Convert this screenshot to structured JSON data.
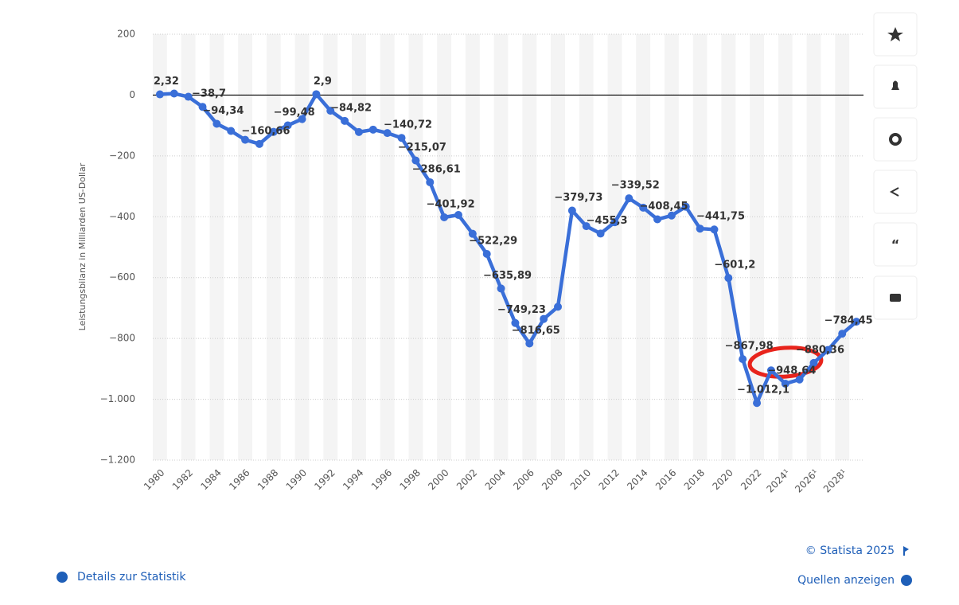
{
  "chart_data": {
    "type": "line",
    "y_label": "Leistungsbilanz in Milliarden US-Dollar",
    "categories": [
      "1980",
      null,
      "1982",
      null,
      "1984",
      null,
      "1986",
      null,
      "1988",
      null,
      "1990",
      null,
      "1992",
      null,
      "1994",
      null,
      "1996",
      null,
      "1998",
      null,
      "2000",
      null,
      "2002",
      null,
      "2004",
      null,
      "2006",
      null,
      "2008",
      null,
      "2010",
      null,
      "2012",
      null,
      "2014",
      null,
      "2016",
      null,
      "2018",
      null,
      "2020",
      null,
      "2022",
      null,
      "2024¹",
      null,
      "2026¹",
      null,
      "2028¹",
      null
    ],
    "values": [
      2.32,
      5,
      -5.5,
      -38.7,
      -94.34,
      -118,
      -147,
      -160.66,
      -121,
      -99.48,
      -79,
      2.9,
      -51.6,
      -84.82,
      -121.6,
      -113.6,
      -124.8,
      -140.72,
      -215.07,
      -286.61,
      -401.92,
      -394,
      -456,
      -522.29,
      -635.89,
      -749.23,
      -816.65,
      -736,
      -696,
      -379.73,
      -431,
      -455.3,
      -418,
      -339.52,
      -370,
      -408.45,
      -396,
      -367,
      -439,
      -441.75,
      -601.2,
      -867.98,
      -1012.1,
      -905,
      -948.64,
      -935,
      -880.36,
      -838,
      -784.45,
      -745
    ],
    "value_labels": [
      "2,32",
      null,
      null,
      "−38,7",
      "−94,34",
      null,
      null,
      "−160,66",
      null,
      "−99,48",
      null,
      "2,9",
      null,
      "−84,82",
      null,
      null,
      null,
      "−140,72",
      "−215,07",
      "−286,61",
      "−401,92",
      null,
      null,
      "−522,29",
      "−635,89",
      "−749,23",
      "−816,65",
      null,
      null,
      "−379,73",
      null,
      "−455,3",
      null,
      "−339,52",
      null,
      "−408,45",
      null,
      null,
      null,
      "−441,75",
      "−601,2",
      "−867,98",
      "−1.012,1",
      null,
      "−948,64",
      null,
      "−880,36",
      null,
      "−784,45",
      null
    ],
    "color": "#3a6fd8",
    "ylim": [
      -1200,
      200
    ],
    "yticks": [
      200,
      0,
      {
        "value": -200,
        "label": "−200"
      },
      {
        "value": -400,
        "label": "−400"
      },
      {
        "value": -600,
        "label": "−600"
      },
      {
        "value": -800,
        "label": "−800"
      },
      {
        "value": -1000,
        "label": "−1.000"
      },
      {
        "value": -1200,
        "label": "−1.200"
      }
    ],
    "grid": true
  },
  "footer": {
    "copyright": "© Statista 2025",
    "details": "Details zur Statistik",
    "sources": "Quellen anzeigen"
  }
}
